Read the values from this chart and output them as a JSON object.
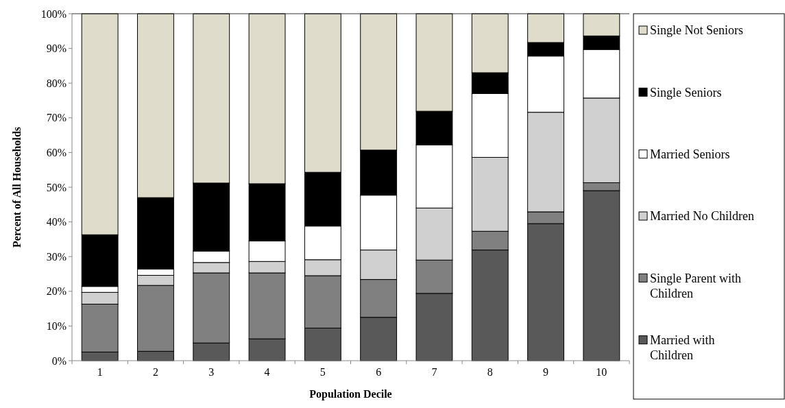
{
  "chart_data": {
    "type": "bar",
    "stacked": true,
    "xlabel": "Population Decile",
    "ylabel": "Percent of All Households",
    "categories": [
      "1",
      "2",
      "3",
      "4",
      "5",
      "6",
      "7",
      "8",
      "9",
      "10"
    ],
    "series": [
      {
        "name": "Married with Children",
        "color": "#595959",
        "values": [
          2.5,
          2.7,
          5.1,
          6.3,
          9.4,
          12.5,
          19.4,
          31.9,
          39.5,
          49.0
        ]
      },
      {
        "name": "Single Parent with Children",
        "color": "#808080",
        "values": [
          13.8,
          19.0,
          20.2,
          19.0,
          15.1,
          10.9,
          9.6,
          5.4,
          3.4,
          2.3
        ]
      },
      {
        "name": "Married No Children",
        "color": "#d0d0d0",
        "values": [
          3.4,
          2.9,
          3.0,
          3.3,
          4.6,
          8.5,
          15.0,
          21.3,
          28.7,
          24.4
        ]
      },
      {
        "name": "Married Seniors",
        "color": "#ffffff",
        "values": [
          1.7,
          1.8,
          3.3,
          5.9,
          9.7,
          15.8,
          18.2,
          18.4,
          16.2,
          14.0
        ]
      },
      {
        "name": "Single Seniors",
        "color": "#000000",
        "values": [
          14.9,
          20.6,
          19.6,
          16.5,
          15.5,
          13.0,
          9.7,
          6.0,
          3.9,
          3.9
        ]
      },
      {
        "name": "Single Not Seniors",
        "color": "#dfdccb",
        "values": [
          63.7,
          53.0,
          48.8,
          49.0,
          45.7,
          39.3,
          28.1,
          17.0,
          8.3,
          6.4
        ]
      }
    ],
    "ylim": [
      0,
      100
    ],
    "yticks": [
      {
        "value": 0,
        "label": "0%"
      },
      {
        "value": 10,
        "label": "10%"
      },
      {
        "value": 20,
        "label": "20%"
      },
      {
        "value": 30,
        "label": "30%"
      },
      {
        "value": 40,
        "label": "40%"
      },
      {
        "value": 50,
        "label": "50%"
      },
      {
        "value": 60,
        "label": "60%"
      },
      {
        "value": 70,
        "label": "70%"
      },
      {
        "value": 80,
        "label": "80%"
      },
      {
        "value": 90,
        "label": "90%"
      },
      {
        "value": 100,
        "label": "100%"
      }
    ],
    "grid": false,
    "legend": "right"
  }
}
